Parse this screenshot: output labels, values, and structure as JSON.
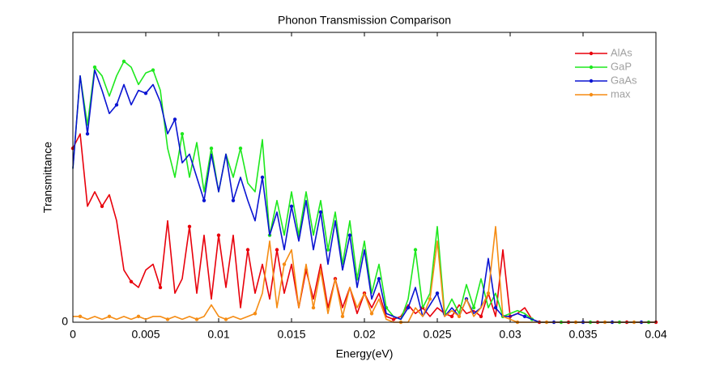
{
  "chart_data": {
    "type": "line",
    "title": "Phonon Transmission Comparison",
    "xlabel": "Energy(eV)",
    "ylabel": "Transmittance",
    "x": [
      0,
      0.0005,
      0.001,
      0.0015,
      0.002,
      0.0025,
      0.003,
      0.0035,
      0.004,
      0.0045,
      0.005,
      0.0055,
      0.006,
      0.0065,
      0.007,
      0.0075,
      0.008,
      0.0085,
      0.009,
      0.0095,
      0.01,
      0.0105,
      0.011,
      0.0115,
      0.012,
      0.0125,
      0.013,
      0.0135,
      0.014,
      0.0145,
      0.015,
      0.0155,
      0.016,
      0.0165,
      0.017,
      0.0175,
      0.018,
      0.0185,
      0.019,
      0.0195,
      0.02,
      0.0205,
      0.021,
      0.0215,
      0.022,
      0.0225,
      0.023,
      0.0235,
      0.024,
      0.0245,
      0.025,
      0.0255,
      0.026,
      0.0265,
      0.027,
      0.0275,
      0.028,
      0.0285,
      0.029,
      0.0295,
      0.03,
      0.0305,
      0.031,
      0.0315,
      0.032,
      0.0325,
      0.033,
      0.0335,
      0.034,
      0.0345,
      0.035,
      0.0355,
      0.036,
      0.0365,
      0.037,
      0.0375,
      0.038,
      0.0385,
      0.039,
      0.0395,
      0.04
    ],
    "series": [
      {
        "name": "AlAs",
        "color": "#e8000b",
        "values": [
          0.6,
          0.65,
          0.4,
          0.45,
          0.4,
          0.44,
          0.35,
          0.18,
          0.14,
          0.12,
          0.18,
          0.2,
          0.12,
          0.35,
          0.1,
          0.15,
          0.33,
          0.1,
          0.3,
          0.08,
          0.3,
          0.12,
          0.3,
          0.05,
          0.25,
          0.1,
          0.2,
          0.08,
          0.25,
          0.1,
          0.2,
          0.05,
          0.18,
          0.08,
          0.2,
          0.05,
          0.15,
          0.05,
          0.12,
          0.03,
          0.1,
          0.05,
          0.1,
          0.02,
          0.01,
          0.02,
          0.06,
          0.03,
          0.05,
          0.02,
          0.05,
          0.03,
          0.02,
          0.06,
          0.03,
          0.04,
          0.02,
          0.1,
          0.02,
          0.25,
          0.02,
          0.03,
          0.05,
          0.01,
          0,
          0,
          0,
          0,
          0,
          0,
          0,
          0,
          0,
          0,
          0,
          0,
          0,
          0,
          0,
          0,
          0
        ]
      },
      {
        "name": "GaP",
        "color": "#1ee81e",
        "values": [
          0.53,
          0.85,
          0.68,
          0.88,
          0.85,
          0.78,
          0.85,
          0.9,
          0.88,
          0.82,
          0.86,
          0.87,
          0.8,
          0.6,
          0.5,
          0.65,
          0.5,
          0.62,
          0.45,
          0.6,
          0.45,
          0.58,
          0.5,
          0.6,
          0.48,
          0.45,
          0.63,
          0.3,
          0.42,
          0.3,
          0.45,
          0.3,
          0.45,
          0.3,
          0.42,
          0.25,
          0.38,
          0.2,
          0.35,
          0.15,
          0.28,
          0.1,
          0.2,
          0.05,
          0.02,
          0.01,
          0.08,
          0.25,
          0.05,
          0.1,
          0.33,
          0.03,
          0.08,
          0.03,
          0.13,
          0.05,
          0.15,
          0.05,
          0.1,
          0.02,
          0.03,
          0.04,
          0.03,
          0.01,
          0,
          0,
          0,
          0,
          0,
          0,
          0,
          0,
          0,
          0,
          0,
          0,
          0,
          0,
          0,
          0,
          0
        ]
      },
      {
        "name": "GaAs",
        "color": "#0a14d2",
        "values": [
          0.53,
          0.85,
          0.65,
          0.87,
          0.8,
          0.72,
          0.75,
          0.82,
          0.75,
          0.8,
          0.79,
          0.82,
          0.76,
          0.65,
          0.7,
          0.55,
          0.58,
          0.5,
          0.42,
          0.58,
          0.45,
          0.58,
          0.42,
          0.5,
          0.42,
          0.35,
          0.5,
          0.3,
          0.38,
          0.25,
          0.4,
          0.28,
          0.42,
          0.25,
          0.38,
          0.2,
          0.35,
          0.18,
          0.3,
          0.12,
          0.25,
          0.08,
          0.15,
          0.03,
          0.02,
          0.01,
          0.05,
          0.12,
          0.02,
          0.06,
          0.1,
          0.02,
          0.05,
          0.02,
          0.08,
          0.03,
          0.05,
          0.22,
          0.05,
          0.02,
          0.02,
          0.03,
          0.02,
          0.01,
          0,
          0,
          0,
          0,
          0,
          0,
          0,
          0,
          0,
          0,
          0,
          0,
          0,
          0,
          0,
          0,
          0
        ]
      },
      {
        "name": "max",
        "color": "#f58c14",
        "values": [
          0.02,
          0.02,
          0.01,
          0.02,
          0.01,
          0.02,
          0.01,
          0.02,
          0.01,
          0.02,
          0.01,
          0.02,
          0.02,
          0.01,
          0.02,
          0.01,
          0.02,
          0.01,
          0.02,
          0.06,
          0.02,
          0.01,
          0.02,
          0.01,
          0.02,
          0.03,
          0.1,
          0.28,
          0.05,
          0.2,
          0.25,
          0.05,
          0.2,
          0.05,
          0.18,
          0.03,
          0.15,
          0.02,
          0.12,
          0.05,
          0.1,
          0.03,
          0.08,
          0.01,
          0,
          0,
          0,
          0.05,
          0.02,
          0.08,
          0.28,
          0.02,
          0.04,
          0.02,
          0.08,
          0.02,
          0.05,
          0.1,
          0.33,
          0.02,
          0.01,
          0,
          0,
          0,
          0,
          0,
          0,
          0,
          0,
          0,
          0,
          0,
          0,
          0,
          0,
          0,
          0,
          0,
          0,
          0,
          0
        ]
      }
    ],
    "xlim": [
      0,
      0.04
    ],
    "xticks": [
      0,
      0.005,
      0.01,
      0.015,
      0.02,
      0.025,
      0.03,
      0.035,
      0.04
    ],
    "ylim": [
      0,
      1
    ],
    "yticks": [
      0
    ],
    "legend": "upper right"
  }
}
